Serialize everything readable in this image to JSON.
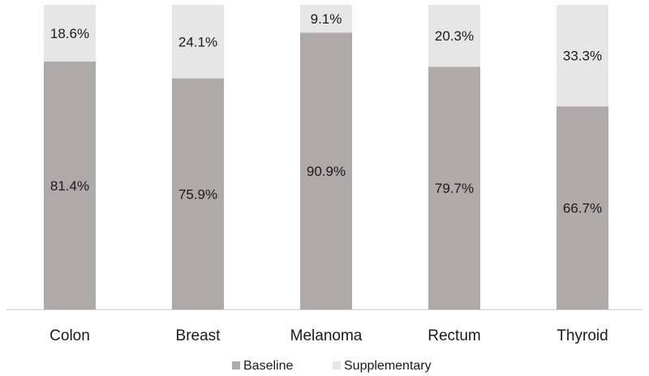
{
  "chart_data": {
    "type": "bar",
    "stacked": true,
    "stack_mode": "percent",
    "categories": [
      "Colon",
      "Breast",
      "Melanoma",
      "Rectum",
      "Thyroid"
    ],
    "series": [
      {
        "name": "Baseline",
        "color": "#aeaaaa",
        "values": [
          81.4,
          75.9,
          90.9,
          79.7,
          66.7
        ],
        "labels": [
          "81.4%",
          "75.9%",
          "90.9%",
          "79.7%",
          "66.7%"
        ]
      },
      {
        "name": "Supplementary",
        "color": "#e7e6e6",
        "values": [
          18.6,
          24.1,
          9.1,
          20.3,
          33.3
        ],
        "labels": [
          "18.6%",
          "24.1%",
          "9.1%",
          "20.3%",
          "33.3%"
        ]
      }
    ],
    "ylim": [
      0,
      100
    ],
    "grid": false,
    "legend_position": "bottom"
  }
}
